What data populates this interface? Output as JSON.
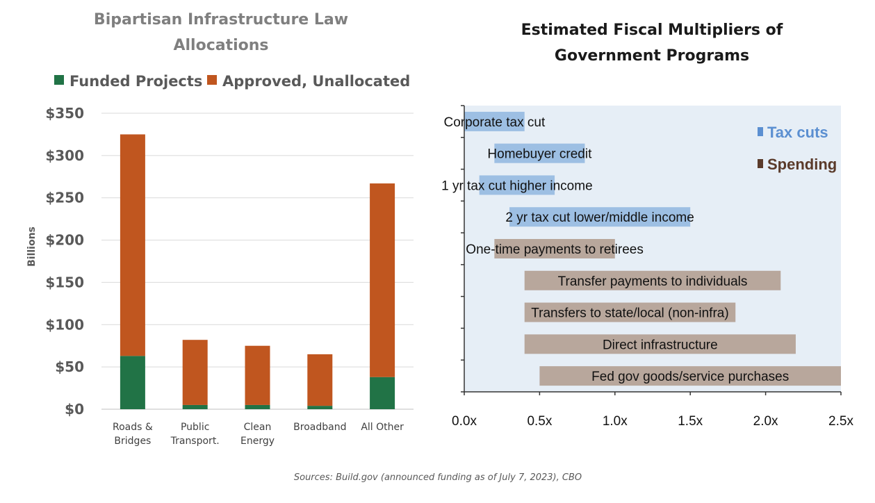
{
  "charts": {
    "left": {
      "title_line1": "Bipartisan  Infrastructure  Law",
      "title_line2": "Allocations",
      "legend": [
        {
          "label": "Funded Projects",
          "color": "#217346"
        },
        {
          "label": "Approved, Unallocated",
          "color": "#c0561f"
        }
      ]
    },
    "right": {
      "title_line1": "Estimated  Fiscal  Multipliers  of",
      "title_line2": "Government  Programs",
      "legend": [
        {
          "label": "Tax cuts",
          "color": "#5b8fd1"
        },
        {
          "label": "Spending",
          "color": "#5a3a2a"
        }
      ]
    }
  },
  "chart_data": [
    {
      "type": "bar",
      "stacked": true,
      "title": "Bipartisan Infrastructure Law Allocations",
      "ylabel": "Billions",
      "ylim": [
        0,
        350
      ],
      "yticks": [
        0,
        50,
        100,
        150,
        200,
        250,
        300,
        350
      ],
      "ytick_labels": [
        "$0",
        "$50",
        "$100",
        "$150",
        "$200",
        "$250",
        "$300",
        "$350"
      ],
      "grid": true,
      "legend_position": "top",
      "categories": [
        [
          "Roads &",
          "Bridges"
        ],
        [
          "Public",
          "Transport."
        ],
        [
          "Clean",
          "Energy"
        ],
        [
          "Broadband"
        ],
        [
          "All Other"
        ]
      ],
      "series": [
        {
          "name": "Funded Projects",
          "color": "#217346",
          "values": [
            63,
            5,
            5,
            4,
            38
          ]
        },
        {
          "name": "Approved, Unallocated",
          "color": "#c0561f",
          "values": [
            262,
            77,
            70,
            61,
            229
          ]
        }
      ]
    },
    {
      "type": "bar",
      "orientation": "horizontal",
      "subtype": "range",
      "title": "Estimated Fiscal Multipliers of Government Programs",
      "xlim": [
        0,
        2.5
      ],
      "xticks": [
        0,
        0.5,
        1.0,
        1.5,
        2.0,
        2.5
      ],
      "xtick_labels": [
        "0.0x",
        "0.5x",
        "1.0x",
        "1.5x",
        "2.0x",
        "2.5x"
      ],
      "legend_position": "top-right",
      "bars": [
        {
          "label": "Corporate tax cut",
          "low": 0.0,
          "high": 0.4,
          "group": "Tax cuts"
        },
        {
          "label": "Homebuyer credit",
          "low": 0.2,
          "high": 0.8,
          "group": "Tax cuts"
        },
        {
          "label": "1 yr tax cut higher income",
          "low": 0.1,
          "high": 0.6,
          "group": "Tax cuts"
        },
        {
          "label": "2 yr tax cut lower/middle income",
          "low": 0.3,
          "high": 1.5,
          "group": "Tax cuts"
        },
        {
          "label": "One-time payments to retirees",
          "low": 0.2,
          "high": 1.0,
          "group": "Spending"
        },
        {
          "label": "Transfer payments to individuals",
          "low": 0.4,
          "high": 2.1,
          "group": "Spending"
        },
        {
          "label": "Transfers to state/local (non-infra)",
          "low": 0.4,
          "high": 1.8,
          "group": "Spending"
        },
        {
          "label": "Direct infrastructure",
          "low": 0.4,
          "high": 2.2,
          "group": "Spending"
        },
        {
          "label": "Fed gov goods/service purchases",
          "low": 0.5,
          "high": 2.5,
          "group": "Spending"
        }
      ]
    }
  ],
  "source_note": "Sources: Build.gov (announced funding as of July 7, 2023),  CBO"
}
